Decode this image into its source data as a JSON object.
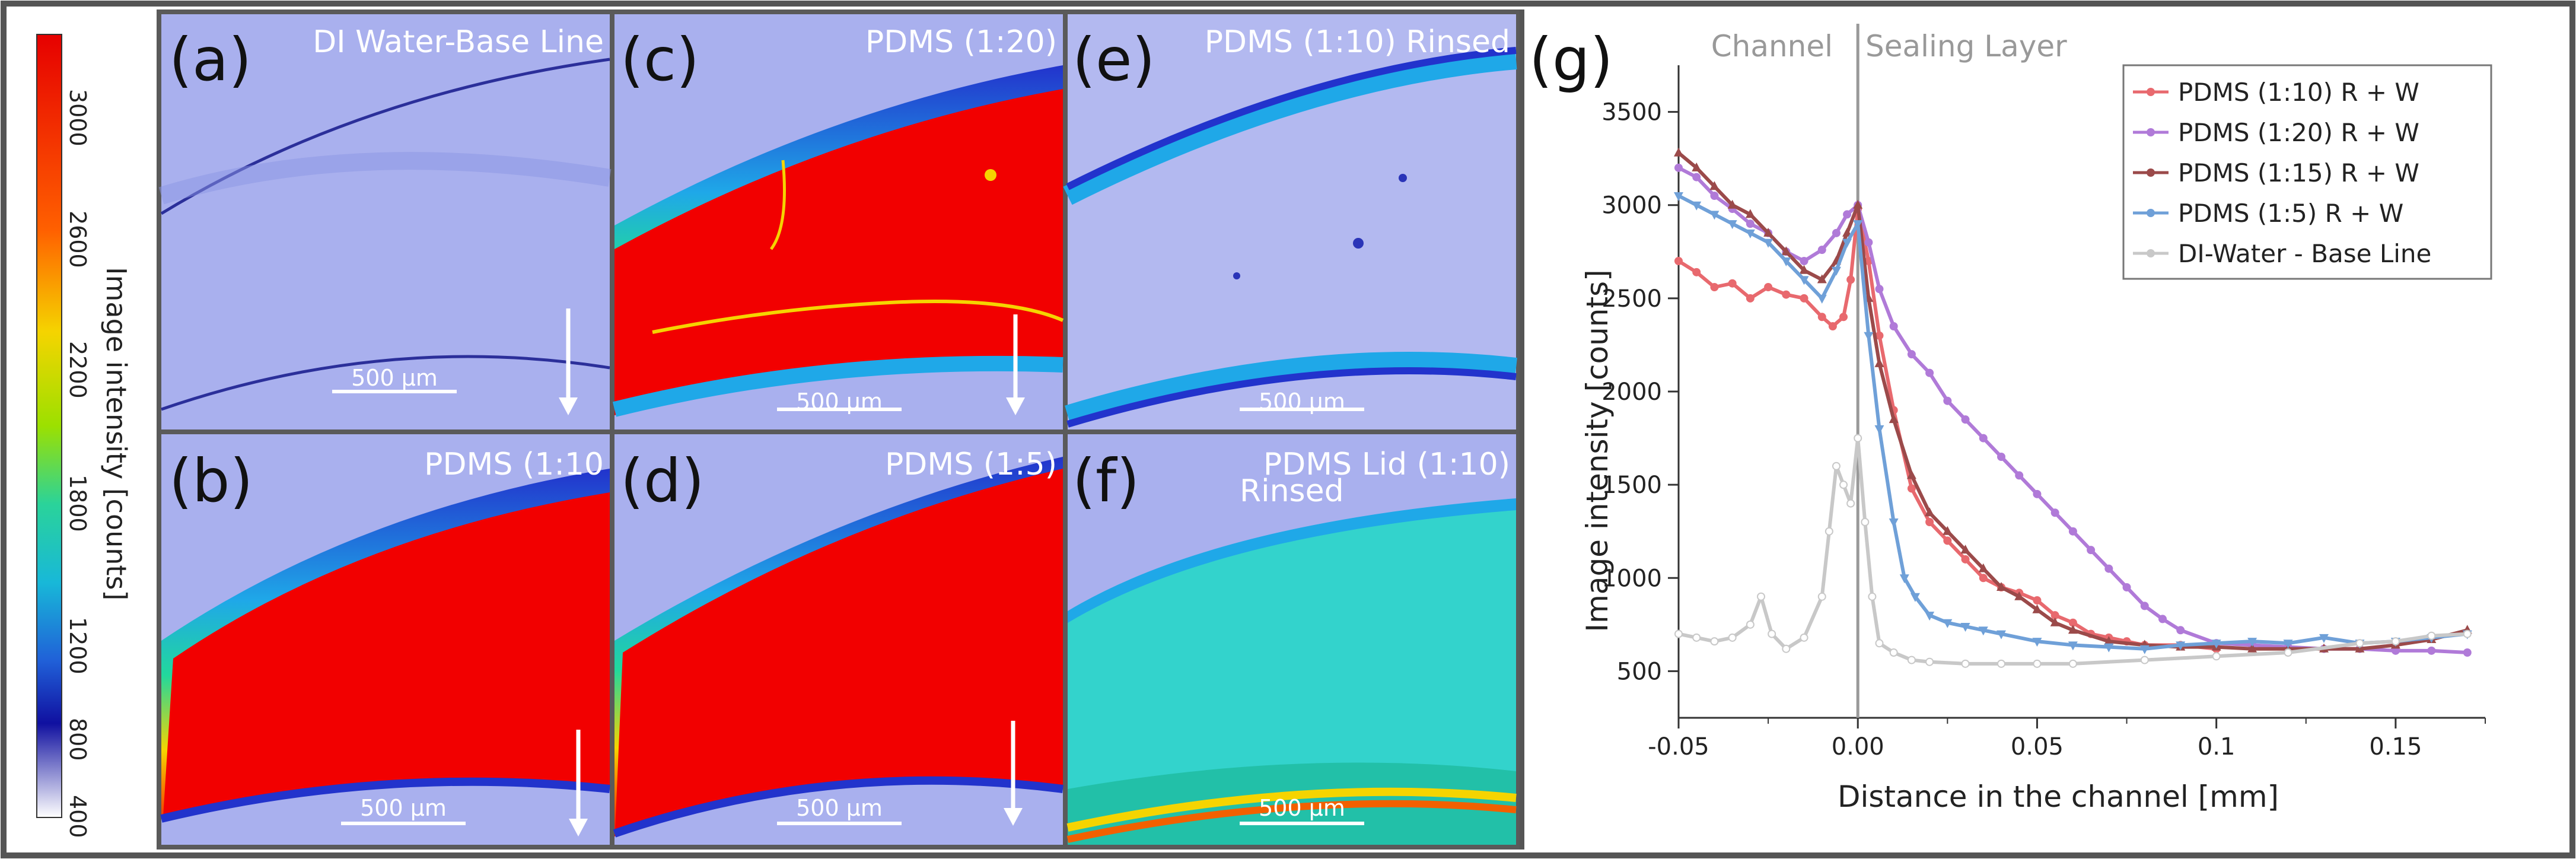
{
  "colorbar": {
    "label": "Image intensity [counts]",
    "ticks": [
      "3000",
      "2600",
      "2200",
      "1800",
      "1200",
      "800",
      "400"
    ]
  },
  "panels": [
    {
      "id": "a",
      "label": "(a)",
      "title": "DI Water-Base Line",
      "scale": "500 µm"
    },
    {
      "id": "b",
      "label": "(b)",
      "title": "PDMS (1:10",
      "scale": "500 µm"
    },
    {
      "id": "c",
      "label": "(c)",
      "title": "PDMS (1:20)",
      "scale": "500 µm"
    },
    {
      "id": "d",
      "label": "(d)",
      "title": "PDMS (1:5)",
      "scale": "500 µm"
    },
    {
      "id": "e",
      "label": "(e)",
      "title": "PDMS (1:10) Rinsed",
      "scale": "500 µm"
    },
    {
      "id": "f",
      "label": "(f)",
      "title": "PDMS Lid (1:10)",
      "title2": "Rinsed",
      "scale": "500 µm"
    }
  ],
  "colors": {
    "red": "#f20000",
    "blue_bg": "#a9b0ee",
    "cyan_fill": "#33d3cc",
    "frame": "#555555"
  },
  "chart_data": {
    "type": "line",
    "panel_label": "(g)",
    "xlabel": "Distance in the channel [mm]",
    "ylabel": "Image intensity [counts]",
    "xlim": [
      -0.05,
      0.175
    ],
    "ylim": [
      250,
      3750
    ],
    "xticks": [
      -0.05,
      0,
      0.05,
      0.1,
      0.15
    ],
    "xtick_labels": [
      "-0.05",
      "0.00",
      "0.05",
      "0.1",
      "0.15"
    ],
    "yticks": [
      500,
      1000,
      1500,
      2000,
      2500,
      3000,
      3500
    ],
    "ytick_labels": [
      "500",
      "1000",
      "1500",
      "2000",
      "2500",
      "3000",
      "3500"
    ],
    "region_labels": [
      "Channel",
      "Sealing Layer"
    ],
    "divider_x": 0,
    "legend_position": "top-right",
    "series": [
      {
        "name": "PDMS (1:10)  R + W",
        "color": "#e8696e",
        "marker": "circle",
        "x": [
          -0.05,
          -0.045,
          -0.04,
          -0.035,
          -0.03,
          -0.025,
          -0.02,
          -0.015,
          -0.01,
          -0.007,
          -0.004,
          -0.002,
          0,
          0.003,
          0.006,
          0.01,
          0.015,
          0.02,
          0.025,
          0.03,
          0.035,
          0.04,
          0.045,
          0.05,
          0.055,
          0.06,
          0.065,
          0.07,
          0.075,
          0.08,
          0.09,
          0.1
        ],
        "y": [
          2700,
          2640,
          2560,
          2580,
          2500,
          2560,
          2520,
          2500,
          2400,
          2350,
          2400,
          2600,
          2980,
          2700,
          2300,
          1900,
          1480,
          1300,
          1200,
          1100,
          1000,
          950,
          920,
          880,
          800,
          760,
          700,
          680,
          660,
          640,
          640,
          620
        ]
      },
      {
        "name": "PDMS (1:20)  R + W",
        "color": "#b07ad8",
        "marker": "circle",
        "x": [
          -0.05,
          -0.045,
          -0.04,
          -0.035,
          -0.03,
          -0.025,
          -0.02,
          -0.015,
          -0.01,
          -0.006,
          -0.003,
          0,
          0.003,
          0.006,
          0.01,
          0.015,
          0.02,
          0.025,
          0.03,
          0.035,
          0.04,
          0.045,
          0.05,
          0.055,
          0.06,
          0.065,
          0.07,
          0.075,
          0.08,
          0.085,
          0.09,
          0.1,
          0.11,
          0.12,
          0.13,
          0.14,
          0.15,
          0.16,
          0.17
        ],
        "y": [
          3200,
          3150,
          3050,
          2980,
          2900,
          2850,
          2750,
          2700,
          2760,
          2850,
          2950,
          3000,
          2800,
          2550,
          2350,
          2200,
          2100,
          1950,
          1850,
          1750,
          1650,
          1550,
          1450,
          1350,
          1250,
          1150,
          1050,
          950,
          850,
          780,
          720,
          650,
          640,
          630,
          620,
          620,
          610,
          610,
          600
        ]
      },
      {
        "name": "PDMS (1:15)  R + W",
        "color": "#9b4a4a",
        "marker": "triangle",
        "x": [
          -0.05,
          -0.045,
          -0.04,
          -0.035,
          -0.03,
          -0.025,
          -0.02,
          -0.015,
          -0.01,
          -0.006,
          -0.003,
          0,
          0.003,
          0.006,
          0.01,
          0.015,
          0.02,
          0.025,
          0.03,
          0.035,
          0.04,
          0.045,
          0.05,
          0.055,
          0.06,
          0.07,
          0.08,
          0.09,
          0.1,
          0.11,
          0.12,
          0.13,
          0.14,
          0.15,
          0.16,
          0.17
        ],
        "y": [
          3280,
          3200,
          3100,
          3000,
          2950,
          2850,
          2750,
          2650,
          2600,
          2700,
          2850,
          3000,
          2500,
          2150,
          1850,
          1550,
          1350,
          1250,
          1150,
          1050,
          950,
          900,
          830,
          760,
          720,
          660,
          640,
          630,
          630,
          620,
          620,
          620,
          620,
          640,
          670,
          720
        ]
      },
      {
        "name": "PDMS (1:5) R + W",
        "color": "#6fa0d8",
        "marker": "triangle-down",
        "x": [
          -0.05,
          -0.045,
          -0.04,
          -0.035,
          -0.03,
          -0.025,
          -0.02,
          -0.015,
          -0.01,
          -0.006,
          -0.003,
          0,
          0.003,
          0.006,
          0.01,
          0.013,
          0.016,
          0.02,
          0.025,
          0.03,
          0.035,
          0.04,
          0.05,
          0.06,
          0.07,
          0.08,
          0.09,
          0.1,
          0.11,
          0.12,
          0.13,
          0.14,
          0.15,
          0.16,
          0.17
        ],
        "y": [
          3050,
          3000,
          2950,
          2900,
          2850,
          2800,
          2700,
          2600,
          2500,
          2650,
          2800,
          2900,
          2300,
          1800,
          1300,
          1000,
          900,
          800,
          760,
          740,
          720,
          700,
          660,
          640,
          630,
          620,
          640,
          650,
          660,
          650,
          680,
          650,
          660,
          680,
          700
        ]
      },
      {
        "name": "DI-Water - Base Line",
        "color": "#c8c8c8",
        "marker": "circle-open",
        "x": [
          -0.05,
          -0.045,
          -0.04,
          -0.035,
          -0.03,
          -0.027,
          -0.024,
          -0.02,
          -0.015,
          -0.01,
          -0.008,
          -0.006,
          -0.004,
          -0.002,
          0,
          0.002,
          0.004,
          0.006,
          0.01,
          0.015,
          0.02,
          0.03,
          0.04,
          0.05,
          0.06,
          0.08,
          0.1,
          0.12,
          0.14,
          0.15,
          0.16,
          0.17
        ],
        "y": [
          700,
          680,
          660,
          680,
          750,
          900,
          700,
          620,
          680,
          900,
          1250,
          1600,
          1500,
          1400,
          1750,
          1300,
          900,
          650,
          600,
          560,
          550,
          540,
          540,
          540,
          540,
          560,
          580,
          600,
          650,
          660,
          690,
          700
        ]
      }
    ]
  }
}
